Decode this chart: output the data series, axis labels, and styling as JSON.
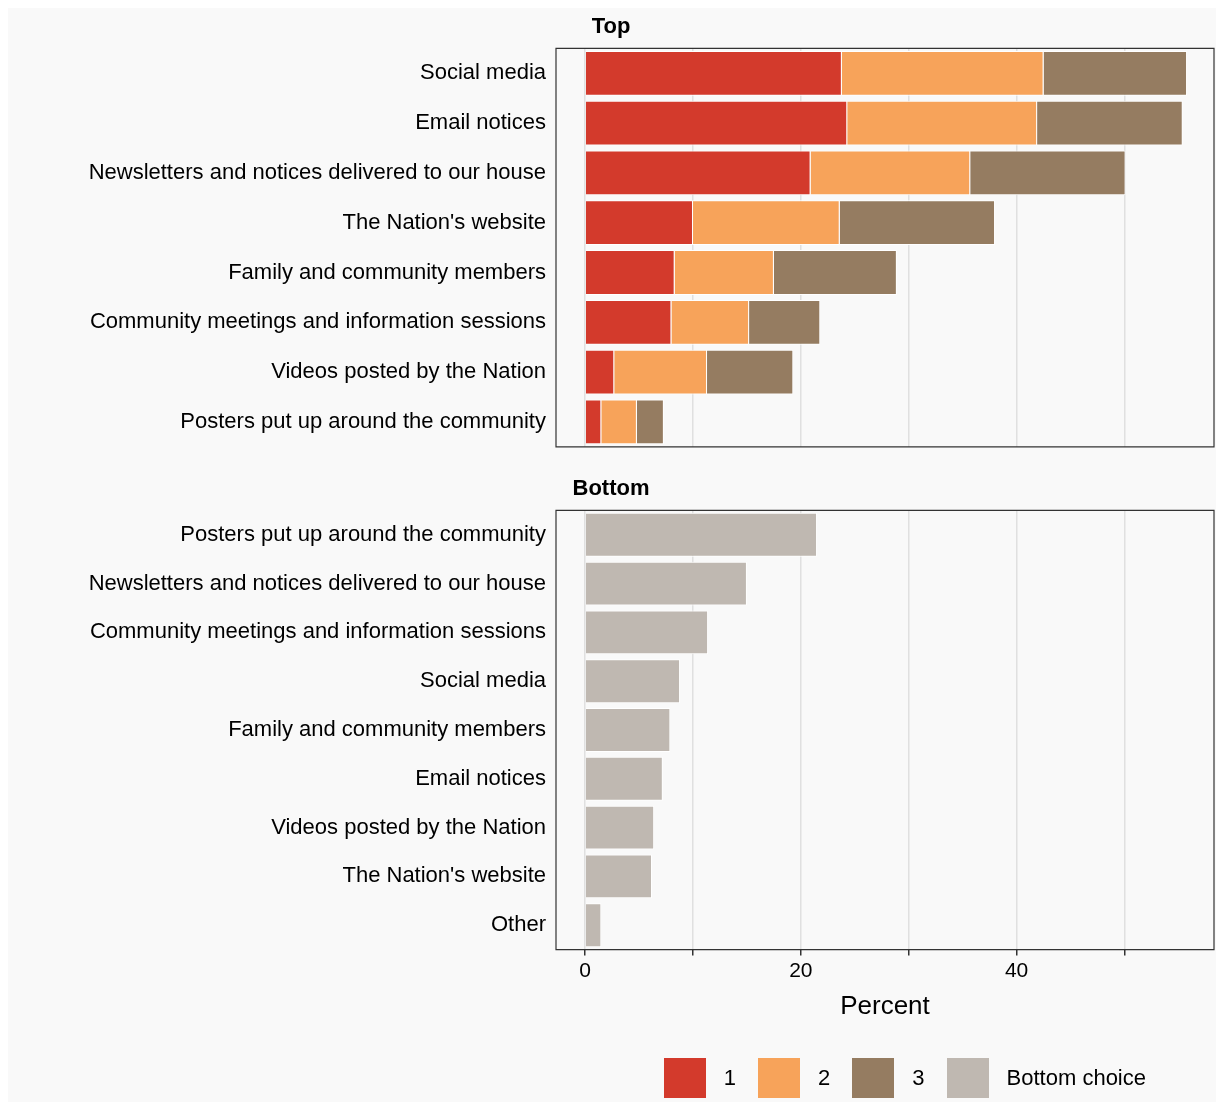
{
  "chart_data": [
    {
      "type": "bar",
      "title": "Top",
      "orientation": "horizontal",
      "stacked": true,
      "grid": "x",
      "legend": "bottom",
      "tick_labels": "y",
      "categories": [
        "Social media",
        "Email notices",
        "Newsletters and notices delivered to our house",
        "The Nation's website",
        "Family and community members",
        "Community meetings and information sessions",
        "Videos posted by the Nation",
        "Posters put up around the community"
      ],
      "xlim": [
        -2.7,
        58.3
      ],
      "xticks": [
        0,
        {
          "value": 10,
          "label": null
        },
        20,
        {
          "value": 30,
          "label": null
        },
        40,
        {
          "value": 50,
          "label": null
        }
      ],
      "series": [
        {
          "name": "1",
          "color": "#d33a2c",
          "values": [
            23.8,
            24.3,
            20.9,
            10.0,
            8.3,
            8.0,
            2.7,
            1.5
          ]
        },
        {
          "name": "2",
          "color": "#f7a35a",
          "values": [
            18.7,
            17.6,
            14.8,
            13.6,
            9.2,
            7.2,
            8.6,
            3.3
          ]
        },
        {
          "name": "3",
          "color": "#957c61",
          "values": [
            13.3,
            13.5,
            14.4,
            14.4,
            11.4,
            6.6,
            8.0,
            2.5
          ]
        }
      ]
    },
    {
      "type": "bar",
      "title": "Bottom",
      "orientation": "horizontal",
      "grid": "x",
      "legend": "bottom",
      "xlabel": "Percent",
      "categories": [
        "Posters put up around the community",
        "Newsletters and notices delivered to our house",
        "Community meetings and information sessions",
        "Social media",
        "Family and community members",
        "Email notices",
        "Videos posted by the Nation",
        "The Nation's website",
        "Other"
      ],
      "xlim": [
        -2.7,
        58.3
      ],
      "xticks": [
        0,
        {
          "value": 10,
          "label": null
        },
        20,
        {
          "value": 30,
          "label": null
        },
        40,
        {
          "value": 50,
          "label": null
        }
      ],
      "series": [
        {
          "name": "Bottom choice",
          "color": "#bfb8b1",
          "values": [
            21.5,
            15.0,
            11.4,
            8.8,
            7.9,
            7.2,
            6.4,
            6.2,
            1.5
          ]
        }
      ]
    }
  ]
}
